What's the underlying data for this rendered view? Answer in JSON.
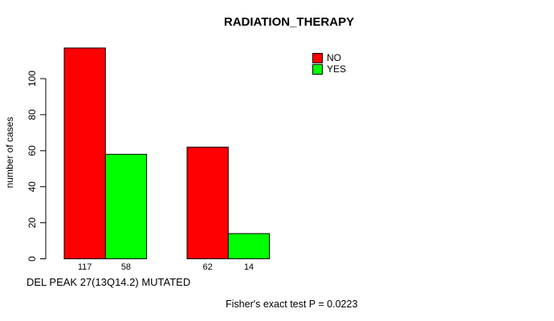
{
  "chart_data": {
    "type": "bar",
    "title": "RADIATION_THERAPY",
    "ylabel": "number of cases",
    "xlabel": "DEL PEAK 27(13Q14.2) MUTATED",
    "annotation": "Fisher's exact test P = 0.0223",
    "yticks": [
      0,
      20,
      40,
      60,
      80,
      100
    ],
    "ylim": [
      0,
      117
    ],
    "grid": false,
    "legend_position": "top-right",
    "series": [
      {
        "name": "NO",
        "color": "#ff0000",
        "values": [
          117,
          62
        ]
      },
      {
        "name": "YES",
        "color": "#00ff00",
        "values": [
          58,
          14
        ]
      }
    ],
    "bar_value_labels": [
      [
        117,
        58
      ],
      [
        62,
        14
      ]
    ],
    "colors": {
      "background": "#ffffff",
      "axis": "#000000",
      "text": "#000000"
    }
  }
}
